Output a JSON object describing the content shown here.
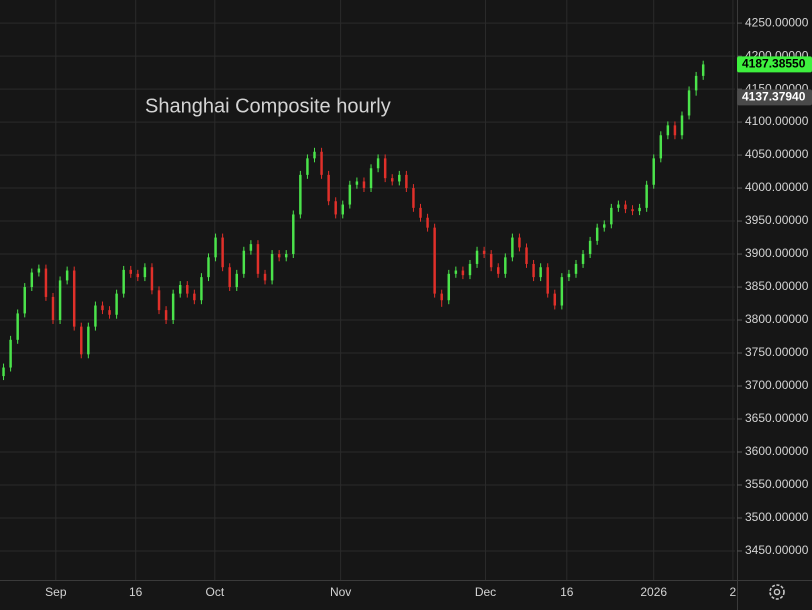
{
  "chart_data": {
    "type": "candlestick",
    "annotation": "Shanghai Composite hourly",
    "annotation_color": "#e0211b",
    "up_color": "#4be34b",
    "down_color": "#e0302a",
    "grid": true,
    "x": [
      0,
      1,
      2,
      3,
      4,
      5,
      6,
      7,
      8,
      9,
      10,
      11,
      12,
      13,
      14,
      15,
      16,
      17,
      18,
      19,
      20,
      21,
      22,
      23,
      24,
      25,
      26,
      27,
      28,
      29,
      30,
      31,
      32,
      33,
      34,
      35,
      36,
      37,
      38,
      39,
      40,
      41,
      42,
      43,
      44,
      45,
      46,
      47,
      48,
      49,
      50,
      51,
      52,
      53,
      54,
      55,
      56,
      57,
      58,
      59,
      60,
      61,
      62,
      63,
      64,
      65,
      66,
      67,
      68,
      69,
      70,
      71,
      72,
      73,
      74,
      75,
      76,
      77,
      78,
      79,
      80,
      81,
      82,
      83,
      84,
      85,
      86,
      87,
      88,
      89,
      90,
      91,
      92,
      93,
      94,
      95,
      96,
      97,
      98,
      99
    ],
    "open": [
      3715,
      3728,
      3770,
      3810,
      3850,
      3872,
      3878,
      3835,
      3800,
      3860,
      3875,
      3790,
      3748,
      3790,
      3822,
      3815,
      3808,
      3840,
      3876,
      3870,
      3865,
      3880,
      3845,
      3815,
      3800,
      3840,
      3853,
      3840,
      3830,
      3865,
      3895,
      3925,
      3880,
      3850,
      3870,
      3905,
      3915,
      3870,
      3860,
      3900,
      3895,
      3900,
      3960,
      4020,
      4045,
      4055,
      4020,
      3980,
      3960,
      3975,
      4005,
      4010,
      4000,
      4030,
      4045,
      4015,
      4010,
      4020,
      4000,
      3970,
      3955,
      3940,
      3840,
      3830,
      3870,
      3875,
      3868,
      3885,
      3905,
      3900,
      3880,
      3870,
      3895,
      3925,
      3910,
      3885,
      3865,
      3880,
      3840,
      3822,
      3865,
      3870,
      3885,
      3900,
      3920,
      3940,
      3945,
      3970,
      3975,
      3968,
      3965,
      3970,
      4005,
      4045,
      4080,
      4095,
      4080,
      4110,
      4148,
      4170
    ],
    "high": [
      3734,
      3776,
      3816,
      3856,
      3878,
      3884,
      3884,
      3841,
      3866,
      3881,
      3881,
      3796,
      3796,
      3828,
      3828,
      3821,
      3846,
      3882,
      3882,
      3876,
      3886,
      3886,
      3851,
      3821,
      3846,
      3859,
      3859,
      3846,
      3871,
      3901,
      3931,
      3931,
      3886,
      3876,
      3911,
      3921,
      3921,
      3876,
      3906,
      3906,
      3906,
      3966,
      4026,
      4051,
      4061,
      4061,
      4026,
      3986,
      3981,
      4011,
      4016,
      4016,
      4036,
      4051,
      4051,
      4021,
      4026,
      4026,
      4006,
      3976,
      3961,
      3946,
      3846,
      3876,
      3881,
      3881,
      3891,
      3911,
      3911,
      3906,
      3886,
      3901,
      3931,
      3931,
      3916,
      3891,
      3886,
      3886,
      3846,
      3871,
      3876,
      3891,
      3906,
      3926,
      3946,
      3951,
      3976,
      3981,
      3981,
      3974,
      3976,
      4011,
      4051,
      4086,
      4101,
      4101,
      4116,
      4154,
      4176,
      4193
    ],
    "low": [
      3709,
      3722,
      3764,
      3804,
      3844,
      3866,
      3829,
      3794,
      3794,
      3854,
      3784,
      3742,
      3742,
      3784,
      3809,
      3802,
      3802,
      3834,
      3864,
      3859,
      3859,
      3839,
      3809,
      3794,
      3794,
      3834,
      3834,
      3824,
      3824,
      3859,
      3889,
      3874,
      3844,
      3844,
      3864,
      3899,
      3864,
      3854,
      3854,
      3889,
      3889,
      3894,
      3954,
      4014,
      4039,
      4014,
      3974,
      3954,
      3954,
      3969,
      3999,
      3994,
      3994,
      4024,
      4009,
      4004,
      4004,
      3994,
      3964,
      3949,
      3934,
      3834,
      3820,
      3824,
      3864,
      3862,
      3862,
      3879,
      3894,
      3874,
      3864,
      3864,
      3889,
      3904,
      3879,
      3859,
      3859,
      3834,
      3816,
      3816,
      3859,
      3864,
      3879,
      3894,
      3914,
      3934,
      3939,
      3964,
      3962,
      3959,
      3959,
      3964,
      3999,
      4039,
      4074,
      4074,
      4074,
      4104,
      4140,
      4164
    ],
    "close": [
      3728,
      3770,
      3810,
      3850,
      3872,
      3878,
      3835,
      3800,
      3860,
      3875,
      3790,
      3748,
      3790,
      3822,
      3815,
      3808,
      3840,
      3876,
      3870,
      3865,
      3880,
      3845,
      3815,
      3800,
      3840,
      3853,
      3840,
      3830,
      3865,
      3895,
      3925,
      3880,
      3850,
      3870,
      3905,
      3915,
      3870,
      3860,
      3900,
      3895,
      3900,
      3960,
      4020,
      4045,
      4055,
      4020,
      3980,
      3960,
      3975,
      4005,
      4010,
      4000,
      4030,
      4045,
      4015,
      4010,
      4020,
      4000,
      3970,
      3955,
      3940,
      3840,
      3830,
      3870,
      3875,
      3868,
      3885,
      3905,
      3900,
      3880,
      3870,
      3895,
      3925,
      3910,
      3885,
      3865,
      3880,
      3840,
      3822,
      3865,
      3870,
      3885,
      3900,
      3920,
      3940,
      3945,
      3970,
      3975,
      3968,
      3965,
      3970,
      4005,
      4045,
      4080,
      4095,
      4080,
      4110,
      4148,
      4170,
      4187.3855
    ],
    "xlim": [
      -0.5,
      103.5
    ],
    "xticks": [
      {
        "value": 7.4,
        "label": "Sep"
      },
      {
        "value": 18.7,
        "label": "16"
      },
      {
        "value": 29.9,
        "label": "Oct"
      },
      {
        "value": 47.7,
        "label": "Nov"
      },
      {
        "value": 68.2,
        "label": "Dec"
      },
      {
        "value": 79.7,
        "label": "16"
      },
      {
        "value": 92,
        "label": "2026"
      },
      {
        "value": 103.2,
        "label": "2"
      }
    ],
    "ylim": [
      3406,
      4285
    ],
    "yticks": [
      {
        "value": 3450,
        "label": "3450.00000"
      },
      {
        "value": 3500,
        "label": "3500.00000"
      },
      {
        "value": 3550,
        "label": "3550.00000"
      },
      {
        "value": 3600,
        "label": "3600.00000"
      },
      {
        "value": 3650,
        "label": "3650.00000"
      },
      {
        "value": 3700,
        "label": "3700.00000"
      },
      {
        "value": 3750,
        "label": "3750.00000"
      },
      {
        "value": 3800,
        "label": "3800.00000"
      },
      {
        "value": 3850,
        "label": "3850.00000"
      },
      {
        "value": 3900,
        "label": "3900.00000"
      },
      {
        "value": 3950,
        "label": "3950.00000"
      },
      {
        "value": 4000,
        "label": "4000.00000"
      },
      {
        "value": 4050,
        "label": "4050.00000"
      },
      {
        "value": 4100,
        "label": "4100.00000"
      },
      {
        "value": 4150,
        "label": "4150.00000"
      },
      {
        "value": 4200,
        "label": "4200.00000"
      },
      {
        "value": 4250,
        "label": "4250.00000"
      }
    ],
    "price_markers": [
      {
        "value": 4187.3855,
        "label": "4187.38550",
        "color": "#3ef03e",
        "text_color": "#000000"
      },
      {
        "value": 4137.3794,
        "label": "4137.37940",
        "color": "#4a4a4a",
        "text_color": "#ffffff"
      }
    ]
  }
}
